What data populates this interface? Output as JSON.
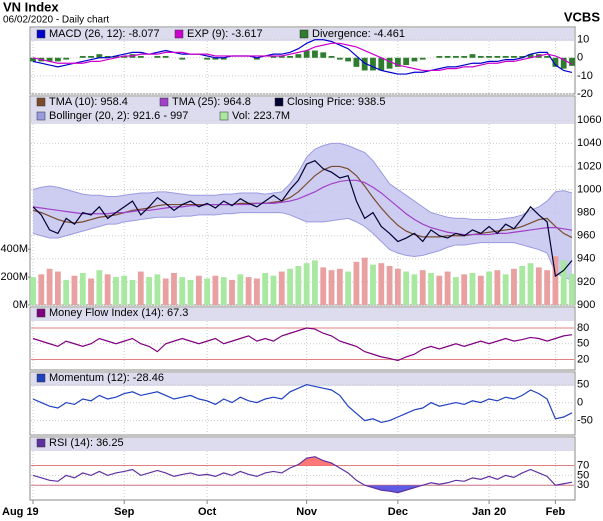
{
  "header": {
    "title": "VN Index",
    "subtitle": "06/02/2020 - Daily chart",
    "brand": "VCBS"
  },
  "chart_data": [
    {
      "type": "line",
      "ylim": [
        -20,
        17
      ],
      "yticks": [
        -20,
        -10,
        0,
        10
      ],
      "grid": true,
      "series": [
        {
          "name": "MACD (26, 12): -8.077",
          "color": "#0000cc",
          "kind": "line",
          "values": [
            -2,
            -3,
            -4,
            -5,
            -4,
            -3,
            -2,
            -1,
            0,
            0,
            1,
            2,
            3,
            3,
            2,
            3,
            4,
            3,
            2,
            2,
            2,
            1,
            0,
            0,
            1,
            1,
            1,
            0,
            1,
            2,
            2,
            3,
            5,
            8,
            10,
            10,
            9,
            7,
            5,
            1,
            -3,
            -5,
            -7,
            -8,
            -9,
            -9,
            -8,
            -8,
            -7,
            -6,
            -5,
            -5,
            -4,
            -3,
            -3,
            -2,
            -2,
            -1,
            -1,
            0,
            2,
            3,
            3,
            -4,
            -7,
            -8.077
          ]
        },
        {
          "name": "EXP (9): -3.617",
          "color": "#cc00cc",
          "kind": "line",
          "values": [
            0,
            -1,
            -2,
            -3,
            -3,
            -3,
            -3,
            -2,
            -2,
            -1,
            0,
            1,
            1,
            2,
            2,
            2,
            3,
            3,
            3,
            2,
            2,
            2,
            1,
            1,
            1,
            1,
            1,
            1,
            1,
            1,
            1,
            2,
            3,
            4,
            6,
            7,
            8,
            8,
            7,
            6,
            4,
            2,
            0,
            -2,
            -4,
            -5,
            -6,
            -7,
            -7,
            -7,
            -6,
            -6,
            -5,
            -5,
            -4,
            -3,
            -3,
            -2,
            -2,
            -1,
            0,
            1,
            2,
            1,
            -1,
            -3.617
          ]
        },
        {
          "name": "Divergence: -4.461",
          "color": "#2e7d2e",
          "kind": "bar",
          "values": [
            -2,
            -2,
            -2,
            -2,
            -1,
            0,
            1,
            1,
            2,
            1,
            1,
            1,
            2,
            1,
            0,
            1,
            1,
            0,
            -1,
            0,
            0,
            -1,
            -1,
            -1,
            0,
            0,
            0,
            -1,
            0,
            1,
            1,
            1,
            2,
            4,
            4,
            3,
            1,
            -1,
            -2,
            -5,
            -7,
            -7,
            -7,
            -6,
            -5,
            -4,
            -2,
            -1,
            0,
            1,
            1,
            1,
            1,
            2,
            1,
            1,
            1,
            1,
            1,
            1,
            2,
            2,
            1,
            -5,
            -6,
            -4.461
          ]
        }
      ]
    },
    {
      "type": "line",
      "ylim": [
        900,
        1081
      ],
      "yticks": [
        900,
        920,
        940,
        960,
        980,
        1000,
        1020,
        1040,
        1060
      ],
      "grid": true,
      "y2lim": [
        0,
        1500
      ],
      "y2ticks": [
        {
          "value": 0,
          "label": "0M"
        },
        {
          "value": 200,
          "label": "200M"
        },
        {
          "value": 400,
          "label": "400M"
        }
      ],
      "series": [
        {
          "name": "TMA (10): 958.4",
          "color": "#7a4a2a",
          "kind": "line",
          "values": [
            982,
            980,
            977,
            974,
            972,
            971,
            972,
            974,
            976,
            977,
            978,
            980,
            982,
            983,
            984,
            986,
            987,
            987,
            987,
            987,
            987,
            987,
            987,
            987,
            987,
            988,
            988,
            988,
            988,
            989,
            990,
            993,
            998,
            1005,
            1012,
            1017,
            1020,
            1020,
            1018,
            1012,
            1003,
            993,
            984,
            976,
            969,
            964,
            961,
            959,
            959,
            959,
            960,
            960,
            960,
            961,
            962,
            963,
            964,
            965,
            966,
            968,
            971,
            974,
            975,
            968,
            962,
            958.4
          ]
        },
        {
          "name": "TMA (25): 964.8",
          "color": "#a040c8",
          "kind": "line",
          "values": [
            985,
            984,
            983,
            982,
            981,
            980,
            979,
            979,
            979,
            979,
            980,
            980,
            981,
            982,
            982,
            983,
            984,
            985,
            985,
            986,
            986,
            987,
            987,
            987,
            987,
            987,
            987,
            988,
            988,
            988,
            989,
            990,
            992,
            995,
            998,
            1002,
            1005,
            1007,
            1008,
            1008,
            1006,
            1002,
            997,
            991,
            985,
            979,
            974,
            970,
            967,
            965,
            963,
            962,
            961,
            961,
            961,
            961,
            962,
            962,
            963,
            964,
            965,
            966,
            967,
            967,
            966,
            964.8
          ]
        },
        {
          "name": "Closing Price: 938.5",
          "color": "#000033",
          "kind": "line",
          "values": [
            985,
            978,
            965,
            962,
            975,
            970,
            980,
            978,
            985,
            975,
            980,
            985,
            990,
            978,
            985,
            993,
            988,
            982,
            987,
            990,
            985,
            988,
            984,
            990,
            986,
            992,
            988,
            985,
            990,
            995,
            990,
            1000,
            1008,
            1022,
            1025,
            1018,
            1015,
            1010,
            1012,
            990,
            975,
            980,
            968,
            962,
            955,
            958,
            962,
            955,
            965,
            960,
            958,
            962,
            960,
            965,
            962,
            968,
            962,
            970,
            966,
            975,
            985,
            978,
            972,
            925,
            930,
            938.5
          ]
        },
        {
          "name": "Bollinger (20, 2): 921.6 - 997",
          "color": "#c4c4f0",
          "edge_color": "#9a9ae0",
          "kind": "band",
          "upper": [
            1000,
            1002,
            1003,
            1002,
            1000,
            998,
            996,
            995,
            995,
            994,
            994,
            995,
            996,
            997,
            997,
            998,
            998,
            997,
            996,
            995,
            995,
            995,
            995,
            996,
            996,
            997,
            997,
            997,
            996,
            997,
            998,
            1005,
            1015,
            1028,
            1035,
            1038,
            1040,
            1040,
            1038,
            1035,
            1032,
            1025,
            1015,
            1005,
            1000,
            995,
            990,
            985,
            980,
            978,
            976,
            975,
            975,
            974,
            974,
            974,
            974,
            975,
            976,
            978,
            982,
            985,
            990,
            998,
            999,
            997
          ],
          "lower": [
            962,
            960,
            958,
            958,
            960,
            962,
            964,
            966,
            968,
            970,
            970,
            972,
            973,
            974,
            975,
            976,
            976,
            976,
            977,
            977,
            978,
            978,
            978,
            979,
            979,
            980,
            980,
            980,
            980,
            980,
            980,
            978,
            975,
            972,
            972,
            972,
            973,
            974,
            975,
            972,
            968,
            962,
            955,
            948,
            945,
            943,
            942,
            943,
            945,
            947,
            950,
            952,
            952,
            953,
            954,
            954,
            954,
            954,
            954,
            952,
            950,
            948,
            945,
            928,
            924,
            921.6
          ]
        },
        {
          "name": "Vol: 223.7M",
          "color": "#a8e8a0",
          "kind": "bar",
          "axis": "y2",
          "values": [
            200,
            220,
            260,
            240,
            180,
            210,
            230,
            190,
            250,
            220,
            200,
            210,
            180,
            240,
            200,
            220,
            190,
            230,
            200,
            180,
            210,
            190,
            210,
            200,
            180,
            220,
            200,
            190,
            230,
            210,
            240,
            260,
            280,
            300,
            320,
            270,
            250,
            260,
            240,
            310,
            340,
            290,
            300,
            280,
            260,
            240,
            220,
            250,
            230,
            210,
            240,
            200,
            220,
            230,
            210,
            240,
            250,
            220,
            260,
            280,
            300,
            270,
            250,
            350,
            320,
            223.7
          ],
          "colors": [
            "#a8e8a0",
            "#e8a0a0",
            "#e8a0a0",
            "#e8a0a0",
            "#a8e8a0",
            "#e8a0a0",
            "#a8e8a0",
            "#e8a0a0",
            "#a8e8a0",
            "#e8a0a0",
            "#a8e8a0",
            "#a8e8a0",
            "#a8e8a0",
            "#e8a0a0",
            "#a8e8a0",
            "#a8e8a0",
            "#e8a0a0",
            "#e8a0a0",
            "#a8e8a0",
            "#a8e8a0",
            "#e8a0a0",
            "#a8e8a0",
            "#e8a0a0",
            "#a8e8a0",
            "#e8a0a0",
            "#a8e8a0",
            "#e8a0a0",
            "#e8a0a0",
            "#a8e8a0",
            "#a8e8a0",
            "#e8a0a0",
            "#a8e8a0",
            "#a8e8a0",
            "#a8e8a0",
            "#a8e8a0",
            "#e8a0a0",
            "#e8a0a0",
            "#e8a0a0",
            "#a8e8a0",
            "#e8a0a0",
            "#e8a0a0",
            "#a8e8a0",
            "#e8a0a0",
            "#e8a0a0",
            "#e8a0a0",
            "#a8e8a0",
            "#a8e8a0",
            "#e8a0a0",
            "#a8e8a0",
            "#e8a0a0",
            "#e8a0a0",
            "#a8e8a0",
            "#e8a0a0",
            "#a8e8a0",
            "#e8a0a0",
            "#a8e8a0",
            "#e8a0a0",
            "#a8e8a0",
            "#e8a0a0",
            "#a8e8a0",
            "#a8e8a0",
            "#e8a0a0",
            "#e8a0a0",
            "#e8a0a0",
            "#a8e8a0",
            "#a8e8a0"
          ]
        }
      ]
    },
    {
      "type": "line",
      "ylim": [
        0,
        120
      ],
      "yticks": [
        20,
        50,
        80
      ],
      "grid": true,
      "overbought": 80,
      "oversold": 20,
      "overbought_color": "#ff6060",
      "oversold_color": "#4040e0",
      "series": [
        {
          "name": "Money Flow Index (14): 67.3",
          "color": "#800080",
          "kind": "line",
          "values": [
            60,
            55,
            50,
            45,
            55,
            50,
            45,
            50,
            60,
            55,
            50,
            55,
            60,
            50,
            45,
            35,
            50,
            55,
            60,
            55,
            50,
            55,
            60,
            50,
            55,
            60,
            65,
            55,
            60,
            55,
            65,
            70,
            75,
            80,
            78,
            70,
            65,
            55,
            50,
            45,
            35,
            30,
            25,
            22,
            18,
            25,
            30,
            40,
            45,
            40,
            45,
            50,
            45,
            50,
            55,
            50,
            55,
            60,
            55,
            58,
            62,
            60,
            55,
            60,
            65,
            67.3
          ]
        }
      ]
    },
    {
      "type": "line",
      "ylim": [
        -90,
        85
      ],
      "yticks": [
        -50,
        0,
        50
      ],
      "grid": true,
      "series": [
        {
          "name": "Momentum (12): -28.46",
          "color": "#2040c0",
          "kind": "line",
          "values": [
            10,
            0,
            -10,
            -15,
            0,
            -5,
            10,
            5,
            20,
            10,
            15,
            25,
            30,
            20,
            25,
            30,
            20,
            10,
            15,
            20,
            10,
            5,
            -5,
            10,
            0,
            15,
            5,
            0,
            10,
            15,
            10,
            30,
            40,
            50,
            45,
            40,
            35,
            20,
            -10,
            -30,
            -50,
            -45,
            -55,
            -50,
            -40,
            -30,
            -20,
            -15,
            0,
            -10,
            -5,
            0,
            -5,
            5,
            0,
            10,
            5,
            15,
            10,
            20,
            35,
            25,
            10,
            -45,
            -40,
            -28.46
          ]
        }
      ]
    },
    {
      "type": "line",
      "ylim": [
        0,
        128
      ],
      "yticks": [
        30,
        50,
        70
      ],
      "grid": true,
      "overbought": 70,
      "oversold": 30,
      "overbought_color": "#ff6060",
      "oversold_color": "#4040e0",
      "categories": [
        "Aug 19",
        null,
        null,
        null,
        null,
        null,
        null,
        null,
        null,
        null,
        null,
        "Sep",
        null,
        null,
        null,
        null,
        null,
        null,
        null,
        null,
        null,
        "Oct",
        null,
        null,
        null,
        null,
        null,
        null,
        null,
        null,
        null,
        null,
        null,
        "Nov",
        null,
        null,
        null,
        null,
        null,
        null,
        null,
        null,
        null,
        null,
        "Dec",
        null,
        null,
        null,
        null,
        null,
        null,
        null,
        null,
        null,
        null,
        "Jan 20",
        null,
        null,
        null,
        null,
        null,
        null,
        null,
        "Feb",
        null,
        null
      ],
      "series": [
        {
          "name": "RSI (14): 36.25",
          "color": "#6030a0",
          "kind": "line",
          "values": [
            50,
            45,
            40,
            38,
            50,
            45,
            55,
            50,
            58,
            50,
            55,
            58,
            62,
            50,
            55,
            60,
            55,
            48,
            52,
            55,
            50,
            52,
            48,
            55,
            50,
            58,
            52,
            48,
            55,
            58,
            55,
            65,
            72,
            85,
            88,
            80,
            75,
            65,
            55,
            40,
            30,
            25,
            20,
            18,
            15,
            20,
            25,
            30,
            35,
            32,
            35,
            40,
            38,
            45,
            42,
            48,
            42,
            50,
            46,
            55,
            62,
            55,
            48,
            30,
            33,
            36.25
          ]
        }
      ]
    }
  ]
}
